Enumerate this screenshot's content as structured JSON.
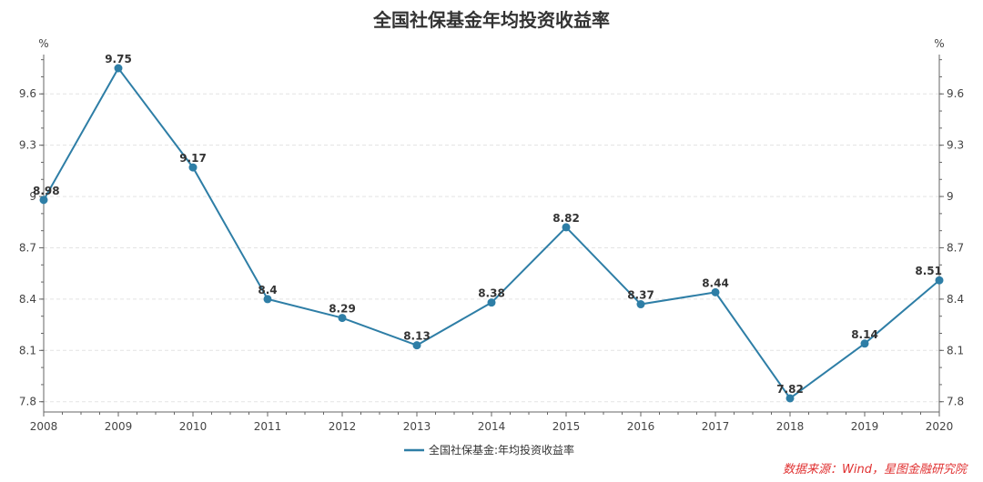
{
  "chart_data": {
    "type": "line",
    "title": "全国社保基金年均投资收益率",
    "y_unit_left": "%",
    "y_unit_right": "%",
    "x": [
      "2008",
      "2009",
      "2010",
      "2011",
      "2012",
      "2013",
      "2014",
      "2015",
      "2016",
      "2017",
      "2018",
      "2019",
      "2020"
    ],
    "series": [
      {
        "name": "全国社保基金:年均投资收益率",
        "values": [
          8.98,
          9.75,
          9.17,
          8.4,
          8.29,
          8.13,
          8.38,
          8.82,
          8.37,
          8.44,
          7.82,
          8.14,
          8.51
        ],
        "labels": [
          "8.98",
          "9.75",
          "9.17",
          "8.4",
          "8.29",
          "8.13",
          "8.38",
          "8.82",
          "8.37",
          "8.44",
          "7.82",
          "8.14",
          "8.51"
        ]
      }
    ],
    "y_ticks": [
      "7.8",
      "8.1",
      "8.4",
      "8.7",
      "9",
      "9.3",
      "9.6"
    ],
    "ylim": [
      7.74,
      9.83
    ],
    "grid": true,
    "legend_position": "bottom",
    "colors": {
      "series": "#2e7ea6",
      "grid": "#e3e3e3",
      "axis": "#666666"
    }
  },
  "source_note": "数据来源：Wind，星图金融研究院"
}
